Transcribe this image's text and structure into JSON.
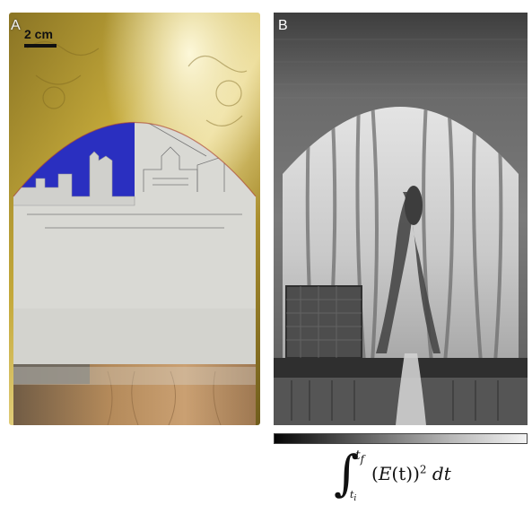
{
  "panel_a": {
    "letter": "A",
    "scale_bar_label": "2 cm",
    "colors": {
      "gold": "#b89b2c",
      "blue": "#2a2fc0",
      "gesso": "#d9d9d4",
      "wood": "#b48a5a"
    }
  },
  "panel_b": {
    "letter": "B"
  },
  "colorbar": {
    "gradient": [
      "#050505",
      "#f2f2f2"
    ]
  },
  "formula": {
    "integral": "∫",
    "upper_limit": "t",
    "upper_sub": "f",
    "lower_limit": "t",
    "lower_sub": "i",
    "open": "(",
    "func": "E",
    "arg": "(t)",
    "close": ")",
    "exponent": "2",
    "differential": "dt"
  }
}
